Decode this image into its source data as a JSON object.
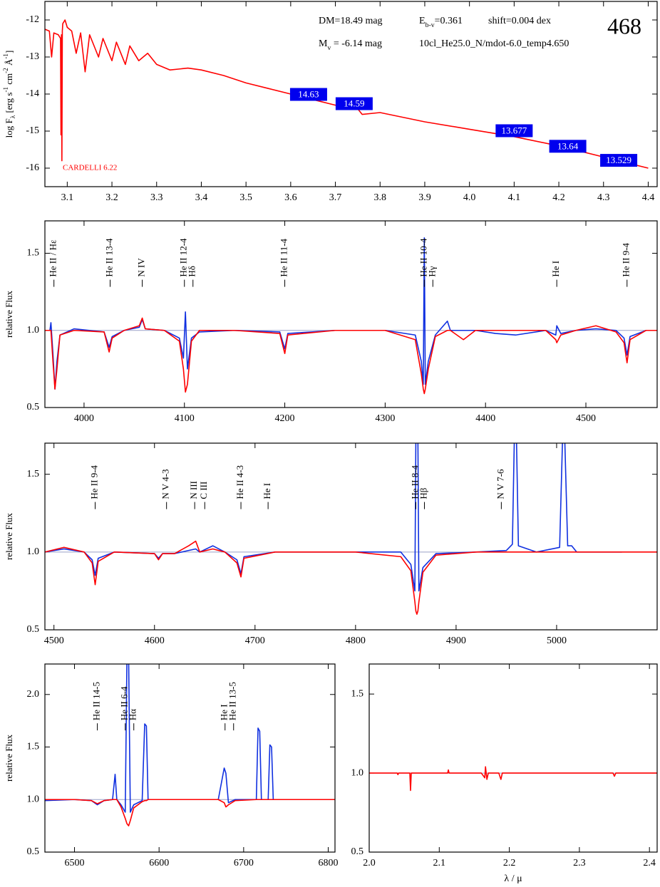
{
  "chart_data": [
    {
      "type": "line",
      "y_label_parts": [
        {
          "text": "log F"
        },
        {
          "text": "λ",
          "shift": "sub"
        },
        {
          "text": " [erg s"
        },
        {
          "text": "-1",
          "shift": "super"
        },
        {
          "text": " cm"
        },
        {
          "text": "-2",
          "shift": "super"
        },
        {
          "text": " Å"
        },
        {
          "text": "-1",
          "shift": "super"
        },
        {
          "text": "]"
        }
      ],
      "annotations": {
        "dm": "DM=18.49 mag",
        "ebv": [
          {
            "text": "E"
          },
          {
            "text": "b-v",
            "shift": "sub"
          },
          {
            "text": "=0.361"
          }
        ],
        "shift": "shift=0.004 dex",
        "mv": [
          {
            "text": "M"
          },
          {
            "text": "v",
            "shift": "sub"
          },
          {
            "text": " =  -6.14 mag"
          }
        ],
        "model": "10cl_He25.0_N/mdot-6.0_temp4.650",
        "id": "468",
        "reddening": "CARDELLI 6.22"
      },
      "xlim": [
        3.05,
        4.42
      ],
      "ylim": [
        -16.5,
        -11.5
      ],
      "xticks": [
        3.1,
        3.2,
        3.3,
        3.4,
        3.5,
        3.6,
        3.7,
        3.8,
        3.9,
        {
          "value": 4,
          "label": "4.0"
        },
        4.1,
        4.2,
        4.3,
        4.4
      ],
      "yticks": [
        -12,
        -13,
        -14,
        -15,
        -16
      ],
      "x": [
        3.05,
        3.06,
        3.065,
        3.07,
        3.08,
        3.085,
        3.086,
        3.087,
        3.088,
        3.089,
        3.09,
        3.095,
        3.1,
        3.11,
        3.12,
        3.13,
        3.14,
        3.15,
        3.17,
        3.18,
        3.2,
        3.21,
        3.23,
        3.24,
        3.26,
        3.28,
        3.3,
        3.33,
        3.37,
        3.4,
        3.45,
        3.5,
        3.55,
        3.6,
        3.65,
        3.7,
        3.75,
        3.76,
        3.8,
        3.9,
        4.0,
        4.1,
        4.2,
        4.3,
        4.4
      ],
      "series": [
        {
          "color": "#ff0000",
          "values": [
            -12.25,
            -12.3,
            -13.0,
            -12.35,
            -12.4,
            -12.5,
            -15.1,
            -12.4,
            -15.8,
            -12.3,
            -12.1,
            -12.0,
            -12.2,
            -12.3,
            -12.9,
            -12.35,
            -13.4,
            -12.4,
            -13.0,
            -12.5,
            -13.1,
            -12.6,
            -13.2,
            -12.7,
            -13.1,
            -12.9,
            -13.2,
            -13.35,
            -13.3,
            -13.35,
            -13.5,
            -13.7,
            -13.85,
            -14.0,
            -14.15,
            -14.3,
            -14.4,
            -14.55,
            -14.5,
            -14.75,
            -14.95,
            -15.15,
            -15.4,
            -15.7,
            -16.0
          ]
        }
      ],
      "photometry": [
        {
          "mag": 14.63,
          "x": 3.64,
          "y": -14.01
        },
        {
          "mag": 14.59,
          "x": 3.742,
          "y": -14.26
        },
        {
          "mag": 13.677,
          "x": 4.1,
          "y": -14.99
        },
        {
          "mag": 13.64,
          "x": 4.22,
          "y": -15.41
        },
        {
          "mag": 13.529,
          "x": 4.334,
          "y": -15.79
        }
      ],
      "photometry_color": "#0000ee"
    },
    {
      "type": "line",
      "y_label": "relative Flux",
      "xlim": [
        3961,
        4571
      ],
      "ylim": [
        0.5,
        1.71
      ],
      "xticks": [
        4000,
        4100,
        4200,
        4300,
        4400,
        4500
      ],
      "yticks": [
        0.5,
        {
          "value": 1,
          "label": "1.0"
        },
        1.5
      ],
      "reference_line": 1,
      "x": [
        3961,
        3966,
        3967,
        3969,
        3971,
        3973,
        3976,
        3990,
        4020,
        4025,
        4028,
        4040,
        4055,
        4058,
        4061,
        4080,
        4095,
        4099,
        4101,
        4103,
        4107,
        4115,
        4150,
        4195,
        4200,
        4203,
        4250,
        4300,
        4330,
        4336,
        4338,
        4339,
        4340,
        4343,
        4350,
        4362,
        4365,
        4378,
        4390,
        4410,
        4430,
        4460,
        4470,
        4471,
        4475,
        4490,
        4510,
        4530,
        4538,
        4541,
        4544,
        4560,
        4571
      ],
      "series": [
        {
          "color": "#1030e0",
          "values": [
            1.0,
            1.0,
            1.05,
            0.85,
            0.62,
            0.8,
            0.97,
            1.01,
            0.99,
            0.89,
            0.96,
            1.0,
            1.02,
            1.07,
            1.01,
            1.0,
            0.95,
            0.82,
            1.12,
            0.75,
            0.95,
            0.99,
            1.0,
            0.99,
            0.88,
            0.98,
            1.0,
            1.0,
            0.97,
            0.8,
            0.65,
            1.6,
            0.65,
            0.8,
            0.97,
            1.06,
            1.0,
            1.0,
            1.0,
            0.98,
            0.97,
            1.0,
            0.97,
            1.03,
            0.98,
            1.0,
            1.01,
            1.0,
            0.95,
            0.84,
            0.96,
            1.0,
            null
          ]
        },
        {
          "color": "#ff0000",
          "values": [
            1.0,
            1.0,
            1.0,
            0.8,
            0.62,
            0.75,
            0.97,
            1.0,
            0.99,
            0.86,
            0.95,
            1.0,
            1.03,
            1.08,
            1.01,
            1.0,
            0.93,
            0.75,
            0.6,
            0.65,
            0.93,
            1.0,
            1.0,
            0.98,
            0.85,
            0.97,
            1.0,
            1.0,
            0.94,
            0.72,
            0.62,
            0.59,
            0.62,
            0.75,
            0.96,
            1.0,
            1.0,
            0.94,
            1.0,
            1.0,
            1.0,
            1.0,
            0.94,
            0.92,
            0.97,
            1.0,
            1.03,
            0.99,
            0.92,
            0.79,
            0.94,
            1.0,
            1.0
          ]
        }
      ],
      "line_labels": [
        {
          "x": 3970,
          "label": "He II / Hε"
        },
        {
          "x": 4026,
          "label": "He II 13-4"
        },
        {
          "x": 4058,
          "label": "N IV"
        },
        {
          "x": 4100,
          "label": "He II 12-4"
        },
        {
          "x": 4102,
          "label": "Hδ"
        },
        {
          "x": 4200,
          "label": "He II 11-4"
        },
        {
          "x": 4339,
          "label": "He II 10-4"
        },
        {
          "x": 4340,
          "label": "Hγ"
        },
        {
          "x": 4471,
          "label": "He I"
        },
        {
          "x": 4541,
          "label": "He II 9-4"
        }
      ]
    },
    {
      "type": "line",
      "y_label": "relative Flux",
      "xlim": [
        4491,
        5100
      ],
      "ylim": [
        0.5,
        1.7
      ],
      "xticks": [
        4500,
        4600,
        4700,
        4800,
        4900,
        5000
      ],
      "yticks": [
        0.5,
        {
          "value": 1,
          "label": "1.0"
        },
        1.5
      ],
      "reference_line": 1,
      "x": [
        4491,
        4510,
        4530,
        4538,
        4541,
        4544,
        4560,
        4600,
        4604,
        4608,
        4620,
        4634,
        4641,
        4645,
        4658,
        4670,
        4682,
        4686,
        4689,
        4720,
        4800,
        4845,
        4855,
        4859,
        4860,
        4861,
        4862,
        4863,
        4867,
        4880,
        4920,
        4950,
        4956,
        4958,
        4960,
        4962,
        4980,
        5003,
        5006,
        5008,
        5011,
        5015,
        5020,
        5065,
        5100
      ],
      "series": [
        {
          "color": "#1030e0",
          "values": [
            1.0,
            1.02,
            1.0,
            0.95,
            0.85,
            0.96,
            1.0,
            0.99,
            0.96,
            0.99,
            0.99,
            1.01,
            1.02,
            1.0,
            1.04,
            1.0,
            0.95,
            0.86,
            0.97,
            1.0,
            1.0,
            1.0,
            0.92,
            0.75,
            1.75,
            1.75,
            1.75,
            0.75,
            0.9,
            0.99,
            1.0,
            1.01,
            1.05,
            1.75,
            1.75,
            1.04,
            1.0,
            1.03,
            1.75,
            1.75,
            1.04,
            1.04,
            1.0,
            1.0,
            null
          ]
        },
        {
          "color": "#ff0000",
          "values": [
            1.0,
            1.03,
            1.0,
            0.93,
            0.79,
            0.94,
            1.0,
            0.99,
            0.95,
            0.99,
            0.99,
            1.04,
            1.07,
            1.0,
            1.02,
            1.0,
            0.93,
            0.84,
            0.96,
            1.0,
            1.0,
            0.97,
            0.88,
            0.68,
            0.62,
            0.6,
            0.62,
            0.68,
            0.87,
            0.98,
            1.0,
            1.0,
            1.0,
            1.0,
            1.0,
            1.0,
            1.0,
            1.0,
            1.0,
            1.0,
            1.0,
            1.0,
            1.0,
            1.0,
            1.0
          ]
        }
      ],
      "line_labels": [
        {
          "x": 4541,
          "label": "He II 9-4"
        },
        {
          "x": 4612,
          "label": "N V 4-3"
        },
        {
          "x": 4640,
          "label": "N III"
        },
        {
          "x": 4650,
          "label": "C III"
        },
        {
          "x": 4686,
          "label": "He II 4-3"
        },
        {
          "x": 4713,
          "label": "He I"
        },
        {
          "x": 4860,
          "label": "He II 8-4"
        },
        {
          "x": 4861,
          "label": "Hβ"
        },
        {
          "x": 4945,
          "label": "N V 7-6"
        }
      ]
    },
    {
      "type": "line",
      "y_label": "relative Flux",
      "xlim": [
        6465,
        6808
      ],
      "ylim": [
        0.5,
        2.29
      ],
      "xticks": [
        6500,
        6600,
        6700,
        6800
      ],
      "yticks": [
        0.5,
        {
          "value": 1,
          "label": "1.0"
        },
        1.5,
        {
          "value": 2,
          "label": "2.0"
        }
      ],
      "reference_line": 1,
      "x": [
        6465,
        6500,
        6520,
        6527,
        6535,
        6545,
        6548,
        6550,
        6555,
        6560,
        6562,
        6564,
        6566,
        6570,
        6580,
        6583,
        6585,
        6587,
        6620,
        6670,
        6677,
        6679,
        6682,
        6690,
        6715,
        6717,
        6719,
        6721,
        6729,
        6731,
        6733,
        6735,
        6780,
        6808
      ],
      "series": [
        {
          "color": "#1030e0",
          "values": [
            0.99,
            1.0,
            0.99,
            0.95,
            0.99,
            1.0,
            1.24,
            1.0,
            0.95,
            0.88,
            2.35,
            2.35,
            0.88,
            0.95,
            0.99,
            1.72,
            1.7,
            1.0,
            1.0,
            1.0,
            1.3,
            1.25,
            0.97,
            1.0,
            1.0,
            1.68,
            1.65,
            1.0,
            1.0,
            1.52,
            1.5,
            1.0,
            1.0,
            1.0
          ]
        },
        {
          "color": "#ff0000",
          "values": [
            1.0,
            1.0,
            0.99,
            0.96,
            0.99,
            1.0,
            1.0,
            1.0,
            0.93,
            0.82,
            0.77,
            0.75,
            0.8,
            0.92,
            0.98,
            0.99,
            0.99,
            1.0,
            1.0,
            1.0,
            0.97,
            0.93,
            0.95,
            0.99,
            1.0,
            1.0,
            1.0,
            1.0,
            1.0,
            1.0,
            1.0,
            1.0,
            1.0,
            1.0
          ]
        }
      ],
      "line_labels": [
        {
          "x": 6527,
          "label": "He II 14-5"
        },
        {
          "x": 6560,
          "label": "He II 6-4"
        },
        {
          "x": 6563,
          "label": "Hα"
        },
        {
          "x": 6678,
          "label": "He I"
        },
        {
          "x": 6683,
          "label": "He II 13-5"
        }
      ]
    },
    {
      "type": "line",
      "x_label": "λ / μ",
      "xlim": [
        2.0,
        2.411
      ],
      "ylim": [
        0.5,
        1.69
      ],
      "xticks": [
        {
          "value": 2,
          "label": "2.0"
        },
        2.1,
        2.2,
        2.3,
        2.4
      ],
      "yticks": [
        0.5,
        {
          "value": 1,
          "label": "1.0"
        },
        1.5
      ],
      "reference_line": 1,
      "x": [
        2.0,
        2.04,
        2.041,
        2.042,
        2.058,
        2.059,
        2.06,
        2.112,
        2.113,
        2.114,
        2.16,
        2.165,
        2.166,
        2.168,
        2.17,
        2.185,
        2.188,
        2.19,
        2.25,
        2.348,
        2.35,
        2.352,
        2.411
      ],
      "series": [
        {
          "color": "#ff0000",
          "values": [
            1.0,
            1.0,
            0.99,
            1.0,
            1.0,
            0.89,
            1.0,
            1.0,
            1.02,
            1.0,
            1.0,
            0.97,
            1.04,
            0.96,
            1.0,
            1.0,
            0.96,
            1.0,
            1.0,
            1.0,
            0.98,
            1.0,
            1.0
          ]
        }
      ]
    }
  ]
}
